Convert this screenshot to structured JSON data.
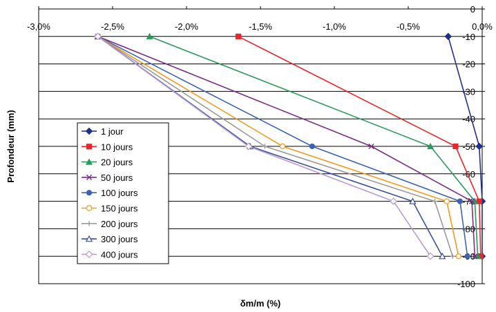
{
  "chart_data": {
    "type": "line",
    "xlabel": "δm/m (%)",
    "ylabel": "Profondeur (mm)",
    "xlim": [
      -3.0,
      0.0
    ],
    "ylim": [
      -100,
      0
    ],
    "x_ticks": [
      -3.0,
      -2.5,
      -2.0,
      -1.5,
      -1.0,
      -0.5,
      0.0
    ],
    "x_tick_labels": [
      "-3,0%",
      "-2,5%",
      "-2,0%",
      "-1,5%",
      "-1,0%",
      "-0,5%",
      "0,0%"
    ],
    "y_ticks": [
      0,
      -10,
      -20,
      -30,
      -40,
      -50,
      -60,
      -70,
      -80,
      -90,
      -100
    ],
    "y_tick_labels": [
      "0",
      "-10",
      "-20",
      "-30",
      "-40",
      "-50",
      "-60",
      "-70",
      "-80",
      "-90",
      "-100"
    ],
    "grid": "horizontal",
    "legend_position": "left",
    "series": [
      {
        "name": "1 jour",
        "color": "#1f2f8a",
        "marker": "diamond",
        "points": [
          [
            -0.23,
            -10
          ],
          [
            -0.02,
            -50
          ],
          [
            0.0,
            -70
          ],
          [
            0.0,
            -90
          ]
        ]
      },
      {
        "name": "10 jours",
        "color": "#e8262b",
        "marker": "square",
        "points": [
          [
            -1.65,
            -10
          ],
          [
            -0.18,
            -50
          ],
          [
            -0.02,
            -70
          ],
          [
            -0.01,
            -90
          ]
        ]
      },
      {
        "name": "20 jours",
        "color": "#2a9a5c",
        "marker": "triangle",
        "points": [
          [
            -2.25,
            -10
          ],
          [
            -0.35,
            -50
          ],
          [
            -0.05,
            -70
          ],
          [
            -0.03,
            -90
          ]
        ]
      },
      {
        "name": "50 jours",
        "color": "#7b2c86",
        "marker": "x",
        "points": [
          [
            -2.6,
            -10
          ],
          [
            -0.75,
            -50
          ],
          [
            -0.07,
            -70
          ],
          [
            -0.05,
            -90
          ]
        ]
      },
      {
        "name": "100 jours",
        "color": "#3c63b3",
        "marker": "circle",
        "points": [
          [
            -2.6,
            -10
          ],
          [
            -1.15,
            -50
          ],
          [
            -0.15,
            -70
          ],
          [
            -0.1,
            -90
          ]
        ]
      },
      {
        "name": "150 jours",
        "color": "#f29a1f",
        "marker": "open-circle",
        "points": [
          [
            -2.6,
            -10
          ],
          [
            -1.35,
            -50
          ],
          [
            -0.24,
            -70
          ],
          [
            -0.16,
            -90
          ]
        ]
      },
      {
        "name": "200 jours",
        "color": "#9a9a9a",
        "marker": "plus",
        "points": [
          [
            -2.6,
            -10
          ],
          [
            -1.47,
            -50
          ],
          [
            -0.32,
            -70
          ],
          [
            -0.2,
            -90
          ]
        ]
      },
      {
        "name": "300 jours",
        "color": "#3b4ea0",
        "marker": "open-triangle",
        "points": [
          [
            -2.6,
            -10
          ],
          [
            -1.57,
            -50
          ],
          [
            -0.47,
            -70
          ],
          [
            -0.27,
            -90
          ]
        ]
      },
      {
        "name": "400 jours",
        "color": "#b89ad0",
        "marker": "open-diamond",
        "points": [
          [
            -2.6,
            -10
          ],
          [
            -1.58,
            -50
          ],
          [
            -0.6,
            -70
          ],
          [
            -0.35,
            -90
          ]
        ]
      }
    ]
  }
}
